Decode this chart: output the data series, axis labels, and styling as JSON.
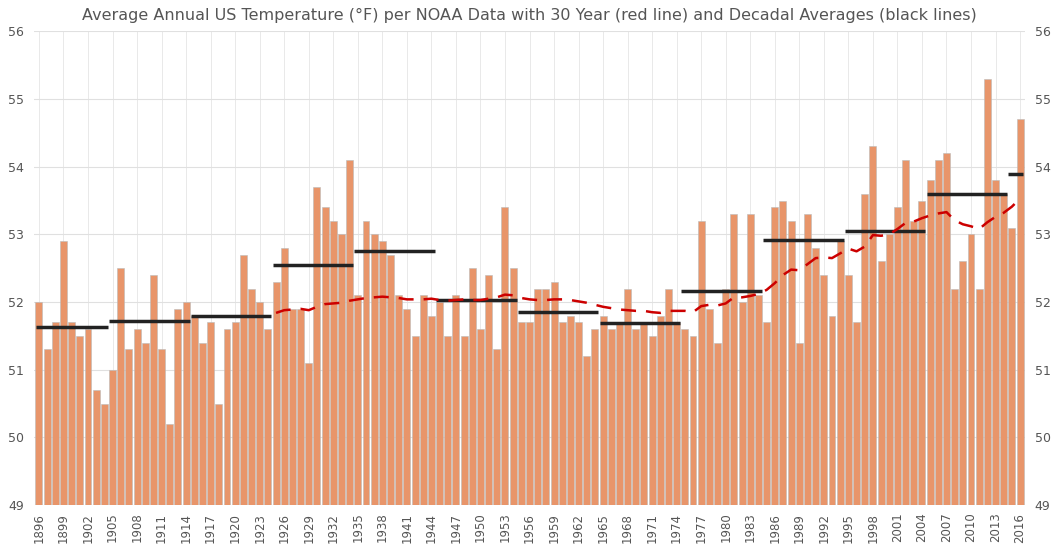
{
  "title": "Average Annual US Temperature (°F) per NOAA Data with 30 Year (red line) and Decadal Averages (black lines)",
  "years": [
    1896,
    1897,
    1898,
    1899,
    1900,
    1901,
    1902,
    1903,
    1904,
    1905,
    1906,
    1907,
    1908,
    1909,
    1910,
    1911,
    1912,
    1913,
    1914,
    1915,
    1916,
    1917,
    1918,
    1919,
    1920,
    1921,
    1922,
    1923,
    1924,
    1925,
    1926,
    1927,
    1928,
    1929,
    1930,
    1931,
    1932,
    1933,
    1934,
    1935,
    1936,
    1937,
    1938,
    1939,
    1940,
    1941,
    1942,
    1943,
    1944,
    1945,
    1946,
    1947,
    1948,
    1949,
    1950,
    1951,
    1952,
    1953,
    1954,
    1955,
    1956,
    1957,
    1958,
    1959,
    1960,
    1961,
    1962,
    1963,
    1964,
    1965,
    1966,
    1967,
    1968,
    1969,
    1970,
    1971,
    1972,
    1973,
    1974,
    1975,
    1976,
    1977,
    1978,
    1979,
    1980,
    1981,
    1982,
    1983,
    1984,
    1985,
    1986,
    1987,
    1988,
    1989,
    1990,
    1991,
    1992,
    1993,
    1994,
    1995,
    1996,
    1997,
    1998,
    1999,
    2000,
    2001,
    2002,
    2003,
    2004,
    2005,
    2006,
    2007,
    2008,
    2009,
    2010,
    2011,
    2012,
    2013,
    2014,
    2015,
    2016
  ],
  "temps": [
    52.0,
    51.3,
    51.7,
    52.9,
    51.7,
    51.5,
    51.6,
    50.7,
    50.5,
    51.0,
    52.5,
    51.3,
    51.6,
    51.4,
    52.4,
    51.3,
    50.2,
    51.9,
    52.0,
    51.8,
    51.4,
    51.7,
    50.5,
    51.6,
    51.7,
    52.7,
    52.2,
    52.0,
    51.6,
    52.3,
    52.8,
    51.9,
    51.9,
    51.1,
    53.7,
    53.4,
    53.2,
    53.0,
    54.1,
    52.1,
    53.2,
    53.0,
    52.9,
    52.7,
    52.1,
    51.9,
    51.5,
    52.1,
    51.8,
    52.0,
    51.5,
    52.1,
    51.5,
    52.5,
    51.6,
    52.4,
    51.3,
    53.4,
    52.5,
    51.7,
    51.7,
    52.2,
    52.2,
    52.3,
    51.7,
    51.8,
    51.7,
    51.2,
    51.6,
    51.8,
    51.6,
    51.7,
    52.2,
    51.6,
    51.7,
    51.5,
    51.8,
    52.2,
    51.7,
    51.6,
    51.5,
    53.2,
    51.9,
    51.4,
    52.2,
    53.3,
    52.0,
    53.3,
    52.1,
    51.7,
    53.4,
    53.5,
    53.2,
    51.4,
    53.3,
    52.8,
    52.4,
    51.8,
    52.9,
    52.4,
    51.7,
    53.6,
    54.3,
    52.6,
    53.0,
    53.4,
    54.1,
    53.2,
    53.5,
    53.8,
    54.1,
    54.2,
    52.2,
    52.6,
    53.0,
    52.2,
    55.3,
    53.8,
    53.6,
    53.1,
    54.7
  ],
  "bar_color": "#E8956A",
  "bar_edge_color": "#BBBBBB",
  "ylim": [
    49,
    56
  ],
  "yticks": [
    49,
    50,
    51,
    52,
    53,
    54,
    55,
    56
  ],
  "xtick_years": [
    1896,
    1899,
    1902,
    1905,
    1908,
    1911,
    1914,
    1917,
    1920,
    1923,
    1926,
    1929,
    1932,
    1935,
    1938,
    1941,
    1944,
    1947,
    1950,
    1953,
    1956,
    1959,
    1962,
    1965,
    1968,
    1971,
    1974,
    1977,
    1980,
    1983,
    1986,
    1989,
    1992,
    1995,
    1998,
    2001,
    2004,
    2007,
    2010,
    2013,
    2016
  ],
  "grid_color": "#E0E0E0",
  "title_color": "#555555",
  "title_fontsize": 11.5,
  "background_color": "#FFFFFF",
  "decadal_lines": [
    {
      "x_start": 1896,
      "x_end": 1904,
      "y": 51.63
    },
    {
      "x_start": 1905,
      "x_end": 1914,
      "y": 51.72
    },
    {
      "x_start": 1915,
      "x_end": 1924,
      "y": 51.8
    },
    {
      "x_start": 1925,
      "x_end": 1934,
      "y": 52.55
    },
    {
      "x_start": 1935,
      "x_end": 1944,
      "y": 52.76
    },
    {
      "x_start": 1945,
      "x_end": 1954,
      "y": 52.03
    },
    {
      "x_start": 1955,
      "x_end": 1964,
      "y": 51.85
    },
    {
      "x_start": 1965,
      "x_end": 1974,
      "y": 51.69
    },
    {
      "x_start": 1975,
      "x_end": 1984,
      "y": 52.17
    },
    {
      "x_start": 1985,
      "x_end": 1994,
      "y": 52.92
    },
    {
      "x_start": 1995,
      "x_end": 2004,
      "y": 53.05
    },
    {
      "x_start": 2005,
      "x_end": 2014,
      "y": 53.6
    },
    {
      "x_start": 2015,
      "x_end": 2016,
      "y": 53.9
    }
  ],
  "rolling30_data": {
    "years": [
      1925,
      1926,
      1927,
      1928,
      1929,
      1930,
      1931,
      1932,
      1933,
      1934,
      1935,
      1936,
      1937,
      1938,
      1939,
      1940,
      1941,
      1942,
      1943,
      1944,
      1945,
      1946,
      1947,
      1948,
      1949,
      1950,
      1951,
      1952,
      1953,
      1954,
      1955,
      1956,
      1957,
      1958,
      1959,
      1960,
      1961,
      1962,
      1963,
      1964,
      1965,
      1966,
      1967,
      1968,
      1969,
      1970,
      1971,
      1972,
      1973,
      1974,
      1975,
      1976,
      1977,
      1978,
      1979,
      1980,
      1981,
      1982,
      1983,
      1984,
      1985,
      1986,
      1987,
      1988,
      1989,
      1990,
      1991,
      1992,
      1993,
      1994,
      1995,
      1996,
      1997,
      1998,
      1999,
      2000,
      2001,
      2002,
      2003,
      2004,
      2005,
      2006,
      2007,
      2008,
      2009,
      2010,
      2011,
      2012,
      2013,
      2014,
      2015,
      2016
    ],
    "values": [
      51.84,
      51.88,
      51.89,
      51.9,
      51.88,
      51.93,
      51.97,
      51.98,
      51.99,
      52.02,
      52.04,
      52.06,
      52.07,
      52.08,
      52.07,
      52.06,
      52.04,
      52.04,
      52.04,
      52.05,
      52.03,
      52.02,
      52.03,
      52.04,
      52.03,
      52.03,
      52.05,
      52.07,
      52.11,
      52.1,
      52.06,
      52.04,
      52.03,
      52.03,
      52.04,
      52.04,
      52.03,
      52.01,
      51.99,
      51.96,
      51.93,
      51.91,
      51.89,
      51.88,
      51.87,
      51.87,
      51.85,
      51.84,
      51.87,
      51.87,
      51.87,
      51.85,
      51.94,
      51.96,
      51.95,
      51.98,
      52.07,
      52.07,
      52.09,
      52.12,
      52.18,
      52.28,
      52.4,
      52.48,
      52.47,
      52.56,
      52.65,
      52.66,
      52.65,
      52.72,
      52.79,
      52.75,
      52.82,
      52.99,
      52.98,
      53.0,
      53.08,
      53.17,
      53.19,
      53.24,
      53.28,
      53.31,
      53.33,
      53.21,
      53.15,
      53.12,
      53.08,
      53.18,
      53.26,
      53.32,
      53.41,
      53.53
    ]
  },
  "rolling_color": "#CC0000",
  "decadal_color": "#222222",
  "decadal_linewidth": 2.5,
  "rolling_linewidth": 1.8
}
